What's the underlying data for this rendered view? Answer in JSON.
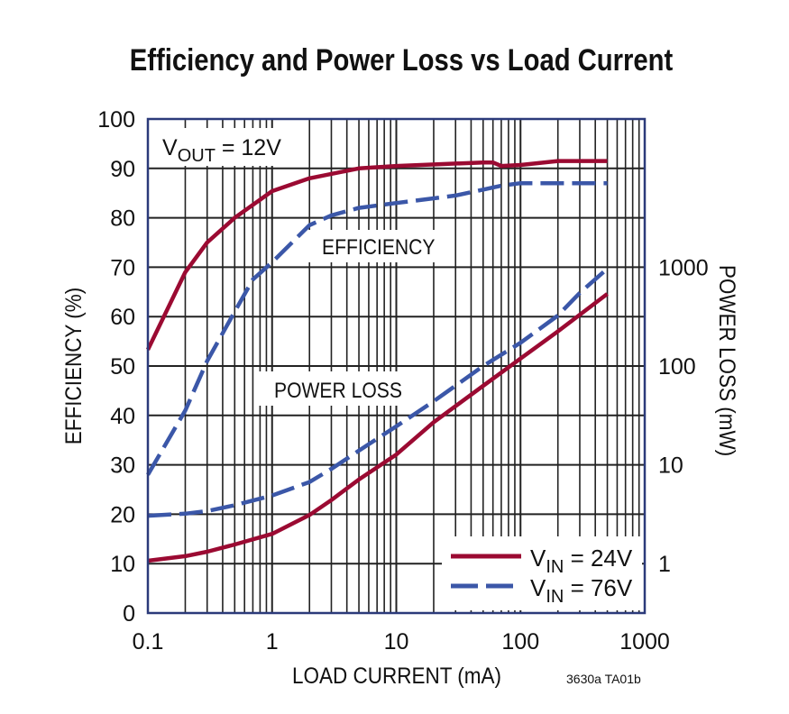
{
  "chart_data": {
    "type": "line",
    "title": "Efficiency and Power Loss vs Load Current",
    "xlabel": "LOAD CURRENT (mA)",
    "ylabel": "EFFICIENCY (%)",
    "y2label": "POWER LOSS (mW)",
    "xscale": "log",
    "xlim": [
      0.1,
      1000
    ],
    "ylim": [
      0,
      100
    ],
    "y2scale": "log",
    "x_ticks": [
      "0.1",
      "1",
      "10",
      "100",
      "1000"
    ],
    "y_ticks": [
      "0",
      "10",
      "20",
      "30",
      "40",
      "50",
      "60",
      "70",
      "80",
      "90",
      "100"
    ],
    "y2_ticks": [
      "1",
      "10",
      "100",
      "1000"
    ],
    "grid": true,
    "legend_position": "bottom-right",
    "annotations": {
      "vout": {
        "v": "V",
        "sub": "OUT",
        "rest": " = 12V"
      },
      "efficiency": "EFFICIENCY",
      "power_loss": "POWER LOSS",
      "figure_id": "3630a TA01b"
    },
    "legend": [
      {
        "v": "V",
        "sub": "IN",
        "rest": " = 24V",
        "color": "#9b0a32",
        "style": "solid"
      },
      {
        "v": "V",
        "sub": "IN",
        "rest": " = 76V",
        "color": "#3b57a8",
        "style": "dashed"
      }
    ],
    "series": [
      {
        "name": "VIN = 24V efficiency",
        "axis": "left",
        "color": "#9b0a32",
        "style": "solid",
        "x": [
          0.1,
          0.2,
          0.3,
          0.5,
          1,
          2,
          5,
          10,
          50,
          60,
          70,
          100,
          200,
          500
        ],
        "y": [
          53.3,
          69,
          75,
          80,
          85.4,
          88,
          90,
          90.5,
          91.2,
          91.2,
          90.5,
          90.7,
          91.5,
          91.5
        ]
      },
      {
        "name": "VIN = 76V efficiency",
        "axis": "left",
        "color": "#3b57a8",
        "style": "dashed",
        "x": [
          0.1,
          0.2,
          0.3,
          0.5,
          0.7,
          1,
          2,
          3,
          5,
          10,
          30,
          70,
          100,
          500
        ],
        "y": [
          28,
          41,
          51,
          61,
          67.5,
          71,
          78.5,
          80.5,
          82,
          83,
          84.5,
          86.5,
          87,
          87
        ]
      },
      {
        "name": "VIN = 24V power loss",
        "axis": "right",
        "color": "#9b0a32",
        "style": "solid",
        "x": [
          0.1,
          0.2,
          0.3,
          0.5,
          1,
          2,
          3,
          5,
          10,
          20,
          50,
          100,
          200,
          500
        ],
        "y": [
          1.07,
          1.19,
          1.32,
          1.56,
          2.0,
          3.1,
          4.4,
          7.1,
          12.7,
          27,
          63,
          119,
          224,
          537
        ]
      },
      {
        "name": "VIN = 76V power loss",
        "axis": "right",
        "color": "#3b57a8",
        "style": "dashed",
        "x": [
          0.1,
          0.2,
          0.3,
          0.5,
          1,
          2,
          3,
          5,
          10,
          20,
          50,
          100,
          200,
          300,
          500
        ],
        "y": [
          3.05,
          3.2,
          3.4,
          3.9,
          4.9,
          6.7,
          9.1,
          13.9,
          24.5,
          44,
          100,
          172,
          324,
          550,
          966
        ]
      }
    ]
  }
}
